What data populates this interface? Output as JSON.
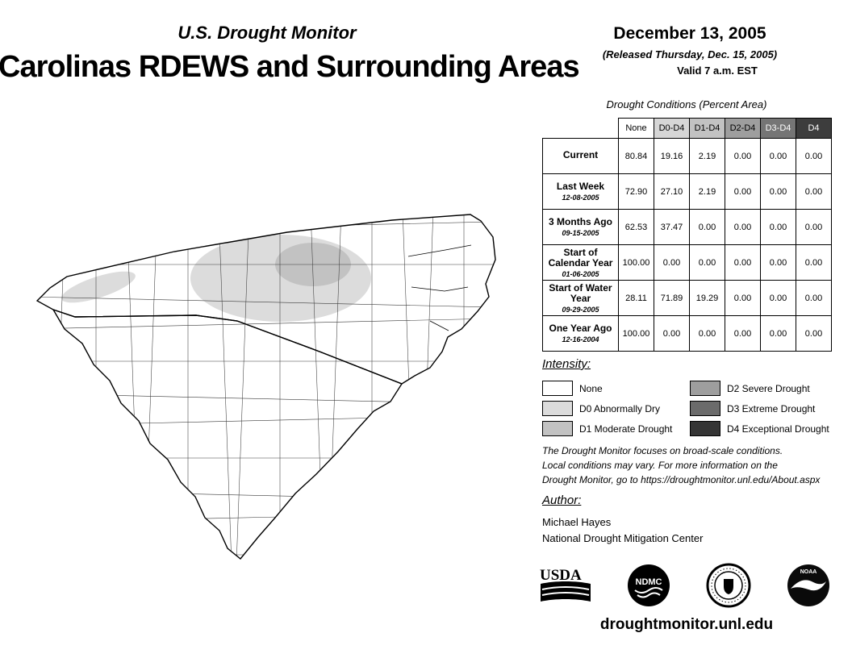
{
  "header": {
    "monitor_title": "U.S. Drought Monitor",
    "region_title": "Carolinas RDEWS and Surrounding Areas",
    "date": "December 13, 2005",
    "released": "(Released Thursday, Dec. 15, 2005)",
    "valid": "Valid 7 a.m. EST"
  },
  "table": {
    "title": "Drought Conditions (Percent Area)",
    "columns": [
      {
        "label": "None",
        "bg": "#ffffff",
        "fg": "#000000"
      },
      {
        "label": "D0-D4",
        "bg": "#d6d6d6",
        "fg": "#000000"
      },
      {
        "label": "D1-D4",
        "bg": "#c2c2c2",
        "fg": "#000000"
      },
      {
        "label": "D2-D4",
        "bg": "#9e9e9e",
        "fg": "#000000"
      },
      {
        "label": "D3-D4",
        "bg": "#757575",
        "fg": "#ffffff"
      },
      {
        "label": "D4",
        "bg": "#3d3d3d",
        "fg": "#ffffff"
      }
    ],
    "rows": [
      {
        "label": "Current",
        "date": "",
        "values": [
          "80.84",
          "19.16",
          "2.19",
          "0.00",
          "0.00",
          "0.00"
        ]
      },
      {
        "label": "Last Week",
        "date": "12-08-2005",
        "values": [
          "72.90",
          "27.10",
          "2.19",
          "0.00",
          "0.00",
          "0.00"
        ]
      },
      {
        "label": "3 Months Ago",
        "date": "09-15-2005",
        "values": [
          "62.53",
          "37.47",
          "0.00",
          "0.00",
          "0.00",
          "0.00"
        ]
      },
      {
        "label": "Start of Calendar Year",
        "date": "01-06-2005",
        "values": [
          "100.00",
          "0.00",
          "0.00",
          "0.00",
          "0.00",
          "0.00"
        ]
      },
      {
        "label": "Start of Water Year",
        "date": "09-29-2005",
        "values": [
          "28.11",
          "71.89",
          "19.29",
          "0.00",
          "0.00",
          "0.00"
        ]
      },
      {
        "label": "One Year Ago",
        "date": "12-16-2004",
        "values": [
          "100.00",
          "0.00",
          "0.00",
          "0.00",
          "0.00",
          "0.00"
        ]
      }
    ]
  },
  "legend": {
    "title": "Intensity:",
    "items": [
      {
        "label": "None",
        "color": "#ffffff"
      },
      {
        "label": "D0 Abnormally Dry",
        "color": "#dcdcdc"
      },
      {
        "label": "D1 Moderate Drought",
        "color": "#c2c2c2"
      },
      {
        "label": "D2 Severe Drought",
        "color": "#9e9e9e"
      },
      {
        "label": "D3 Extreme Drought",
        "color": "#6b6b6b"
      },
      {
        "label": "D4 Exceptional Drought",
        "color": "#353535"
      }
    ]
  },
  "disclaimer": {
    "lines": [
      "The Drought Monitor focuses on broad-scale conditions.",
      "Local conditions may vary. For more information on the",
      "Drought Monitor, go to https://droughtmonitor.unl.edu/About.aspx"
    ]
  },
  "author": {
    "heading": "Author:",
    "name": "Michael Hayes",
    "org": "National Drought Mitigation Center"
  },
  "logos": {
    "usda_text": "USDA",
    "ndmc_text": "NDMC",
    "noaa_text": "NOAA"
  },
  "footer": {
    "url": "droughtmonitor.unl.edu"
  },
  "chart_data": {
    "type": "table",
    "title": "Drought Conditions (Percent Area)",
    "columns": [
      "None",
      "D0-D4",
      "D1-D4",
      "D2-D4",
      "D3-D4",
      "D4"
    ],
    "rows": [
      {
        "label": "Current",
        "date": "",
        "values": [
          80.84,
          19.16,
          2.19,
          0.0,
          0.0,
          0.0
        ]
      },
      {
        "label": "Last Week",
        "date": "12-08-2005",
        "values": [
          72.9,
          27.1,
          2.19,
          0.0,
          0.0,
          0.0
        ]
      },
      {
        "label": "3 Months Ago",
        "date": "09-15-2005",
        "values": [
          62.53,
          37.47,
          0.0,
          0.0,
          0.0,
          0.0
        ]
      },
      {
        "label": "Start of Calendar Year",
        "date": "01-06-2005",
        "values": [
          100.0,
          0.0,
          0.0,
          0.0,
          0.0,
          0.0
        ]
      },
      {
        "label": "Start of Water Year",
        "date": "09-29-2005",
        "values": [
          28.11,
          71.89,
          19.29,
          0.0,
          0.0,
          0.0
        ]
      },
      {
        "label": "One Year Ago",
        "date": "12-16-2004",
        "values": [
          100.0,
          0.0,
          0.0,
          0.0,
          0.0,
          0.0
        ]
      }
    ]
  }
}
